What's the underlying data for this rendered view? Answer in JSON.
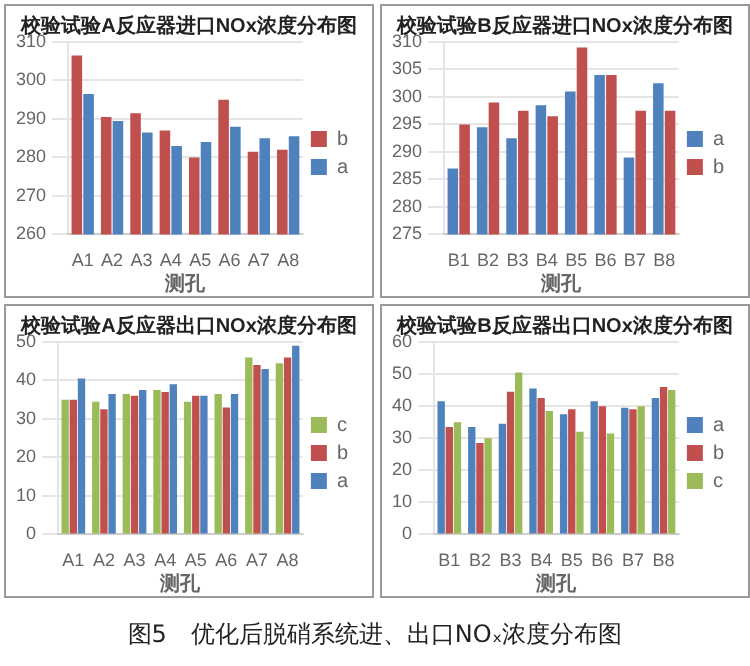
{
  "chart_data": [
    {
      "type": "bar",
      "title": "校验试验A反应器进口NOx浓度分布图",
      "xlabel": "测孔",
      "categories": [
        "A1",
        "A2",
        "A3",
        "A4",
        "A5",
        "A6",
        "A7",
        "A8"
      ],
      "ylim": [
        260,
        310
      ],
      "yticks": [
        260,
        270,
        280,
        290,
        300,
        310
      ],
      "grid": "y",
      "legend": "right",
      "series": [
        {
          "name": "b",
          "color": "#c0504d",
          "values": [
            306.5,
            290.5,
            291.5,
            287,
            280,
            295,
            281.5,
            282
          ]
        },
        {
          "name": "a",
          "color": "#4f81bd",
          "values": [
            296.5,
            289.5,
            286.5,
            283,
            284,
            288,
            285,
            285.5
          ]
        }
      ]
    },
    {
      "type": "bar",
      "title": "校验试验B反应器进口NOx浓度分布图",
      "xlabel": "测孔",
      "categories": [
        "B1",
        "B2",
        "B3",
        "B4",
        "B5",
        "B6",
        "B7",
        "B8"
      ],
      "ylim": [
        275,
        310
      ],
      "yticks": [
        275,
        280,
        285,
        290,
        295,
        300,
        305,
        310
      ],
      "grid": "y",
      "legend": "right",
      "series": [
        {
          "name": "a",
          "color": "#4f81bd",
          "values": [
            287,
            294.5,
            292.5,
            298.5,
            301,
            304,
            289,
            302.5
          ]
        },
        {
          "name": "b",
          "color": "#c0504d",
          "values": [
            295,
            299,
            297.5,
            296.5,
            309,
            304,
            297.5,
            297.5
          ]
        }
      ]
    },
    {
      "type": "bar",
      "title": "校验试验A反应器出口NOx浓度分布图",
      "xlabel": "测孔",
      "categories": [
        "A1",
        "A2",
        "A3",
        "A4",
        "A5",
        "A6",
        "A7",
        "A8"
      ],
      "ylim": [
        0,
        50
      ],
      "yticks": [
        0,
        10,
        20,
        30,
        40,
        50
      ],
      "grid": "y",
      "legend": "right",
      "series": [
        {
          "name": "c",
          "color": "#9bbb59",
          "values": [
            35,
            34.5,
            36.5,
            37.5,
            34.5,
            36.5,
            46,
            44.5
          ]
        },
        {
          "name": "b",
          "color": "#c0504d",
          "values": [
            35,
            32.5,
            36,
            37,
            36,
            33,
            44,
            46
          ]
        },
        {
          "name": "a",
          "color": "#4f81bd",
          "values": [
            40.5,
            36.5,
            37.5,
            39,
            36,
            36.5,
            43,
            49
          ]
        }
      ]
    },
    {
      "type": "bar",
      "title": "校验试验B反应器出口NOx浓度分布图",
      "xlabel": "测孔",
      "categories": [
        "B1",
        "B2",
        "B3",
        "B4",
        "B5",
        "B6",
        "B7",
        "B8"
      ],
      "ylim": [
        0,
        60
      ],
      "yticks": [
        0,
        10,
        20,
        30,
        40,
        50,
        60
      ],
      "grid": "y",
      "legend": "right",
      "annotations": [
        "图5　优化后脱硝系统进、出口NOₓ浓度分布图"
      ],
      "series": [
        {
          "name": "a",
          "color": "#4f81bd",
          "values": [
            41.5,
            33.5,
            34.5,
            45.5,
            37.5,
            41.5,
            39.5,
            42.5
          ]
        },
        {
          "name": "b",
          "color": "#c0504d",
          "values": [
            33.5,
            28.5,
            44.5,
            42.5,
            39,
            40,
            39,
            46
          ]
        },
        {
          "name": "c",
          "color": "#9bbb59",
          "values": [
            35,
            30,
            50.5,
            38.5,
            32,
            31.5,
            40,
            45
          ]
        }
      ]
    }
  ]
}
